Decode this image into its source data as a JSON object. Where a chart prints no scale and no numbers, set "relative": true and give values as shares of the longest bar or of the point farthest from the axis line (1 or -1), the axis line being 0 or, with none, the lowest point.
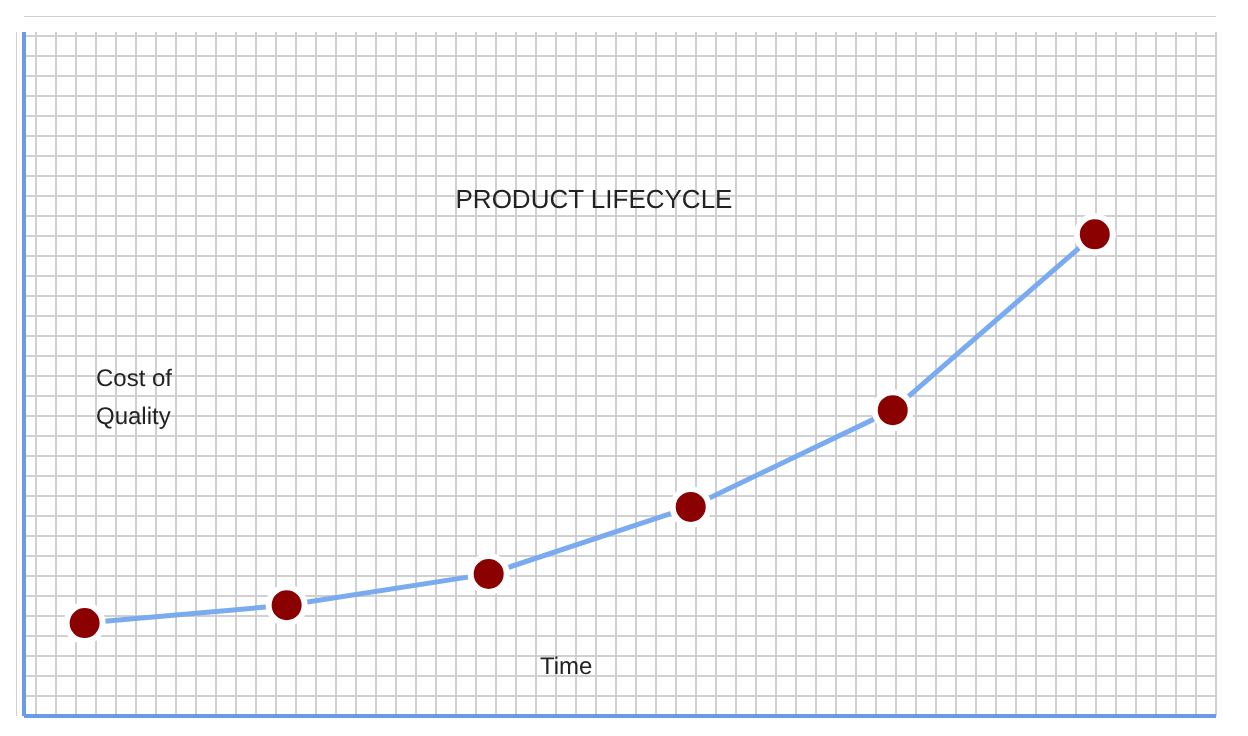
{
  "chart_data": {
    "type": "line",
    "title": "PRODUCT LIFECYCLE",
    "xlabel": "Time",
    "ylabel": "Cost of Quality",
    "relative": true,
    "grid": true,
    "legend": false,
    "categories": [
      null,
      null,
      null,
      null,
      null,
      null
    ],
    "marker": "circle",
    "series": [
      {
        "color": "#7aabf0",
        "values": [
          0.193,
          0.23,
          0.295,
          0.434,
          0.635,
          1
        ]
      }
    ]
  }
}
